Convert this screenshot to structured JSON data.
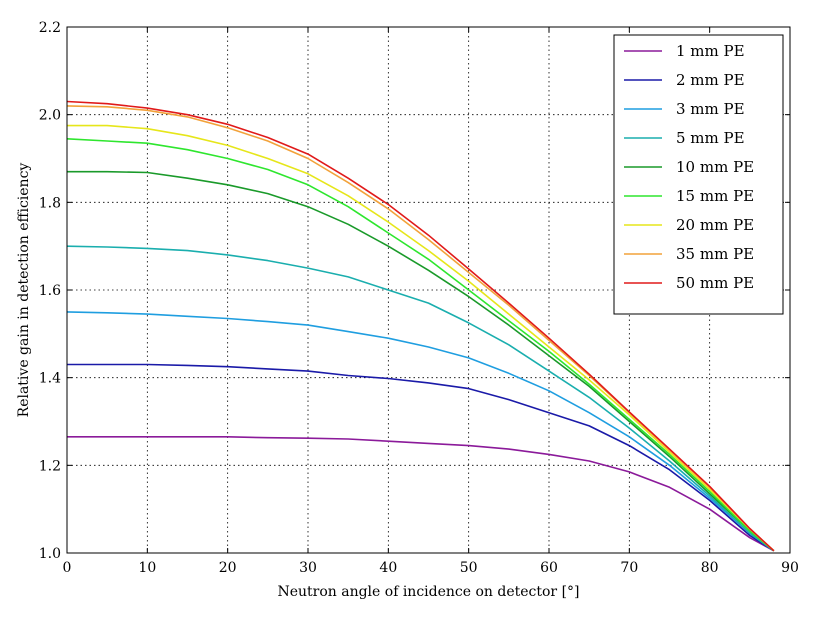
{
  "chart_data": {
    "type": "line",
    "xlabel": "Neutron angle of incidence on detector [°]",
    "ylabel": "Relative gain in detection efficiency",
    "xlim": [
      0,
      90
    ],
    "ylim": [
      1.0,
      2.2
    ],
    "xticks": [
      "0",
      "10",
      "20",
      "30",
      "40",
      "50",
      "60",
      "70",
      "80",
      "90"
    ],
    "yticks": [
      "1.0",
      "1.2",
      "1.4",
      "1.6",
      "1.8",
      "2.0",
      "2.2"
    ],
    "grid": true,
    "legend_position": "top-right",
    "x": [
      0,
      5,
      10,
      15,
      20,
      25,
      30,
      35,
      40,
      45,
      50,
      55,
      60,
      65,
      70,
      75,
      80,
      85,
      88
    ],
    "series": [
      {
        "name": "1 mm PE",
        "color": "#8b1a9a",
        "values": [
          1.265,
          1.265,
          1.265,
          1.265,
          1.265,
          1.263,
          1.262,
          1.26,
          1.255,
          1.25,
          1.245,
          1.237,
          1.225,
          1.21,
          1.185,
          1.15,
          1.1,
          1.035,
          1.005
        ]
      },
      {
        "name": "2 mm PE",
        "color": "#1a1aa8",
        "values": [
          1.43,
          1.43,
          1.43,
          1.428,
          1.425,
          1.42,
          1.415,
          1.405,
          1.398,
          1.388,
          1.375,
          1.35,
          1.32,
          1.29,
          1.245,
          1.19,
          1.12,
          1.04,
          1.005
        ]
      },
      {
        "name": "3 mm PE",
        "color": "#1f9ee0",
        "values": [
          1.55,
          1.548,
          1.545,
          1.54,
          1.535,
          1.528,
          1.52,
          1.505,
          1.49,
          1.47,
          1.445,
          1.41,
          1.37,
          1.32,
          1.265,
          1.2,
          1.125,
          1.045,
          1.005
        ]
      },
      {
        "name": "5 mm PE",
        "color": "#1aaeae",
        "values": [
          1.7,
          1.698,
          1.695,
          1.69,
          1.68,
          1.667,
          1.65,
          1.63,
          1.6,
          1.57,
          1.525,
          1.475,
          1.415,
          1.355,
          1.285,
          1.21,
          1.13,
          1.045,
          1.005
        ]
      },
      {
        "name": "10 mm PE",
        "color": "#1a9a2a",
        "values": [
          1.87,
          1.87,
          1.868,
          1.855,
          1.84,
          1.82,
          1.79,
          1.75,
          1.7,
          1.645,
          1.585,
          1.52,
          1.45,
          1.38,
          1.3,
          1.22,
          1.135,
          1.05,
          1.005
        ]
      },
      {
        "name": "15 mm PE",
        "color": "#2ee62e",
        "values": [
          1.945,
          1.94,
          1.935,
          1.92,
          1.9,
          1.875,
          1.84,
          1.79,
          1.73,
          1.67,
          1.6,
          1.53,
          1.46,
          1.385,
          1.305,
          1.225,
          1.14,
          1.05,
          1.005
        ]
      },
      {
        "name": "20 mm PE",
        "color": "#e6e61a",
        "values": [
          1.975,
          1.975,
          1.968,
          1.952,
          1.93,
          1.9,
          1.865,
          1.815,
          1.755,
          1.69,
          1.62,
          1.545,
          1.47,
          1.395,
          1.315,
          1.23,
          1.145,
          1.055,
          1.005
        ]
      },
      {
        "name": "35 mm PE",
        "color": "#f2a23a",
        "values": [
          2.02,
          2.018,
          2.01,
          1.995,
          1.97,
          1.94,
          1.9,
          1.845,
          1.785,
          1.715,
          1.64,
          1.565,
          1.485,
          1.405,
          1.32,
          1.235,
          1.15,
          1.055,
          1.005
        ]
      },
      {
        "name": "50 mm PE",
        "color": "#e01a1a",
        "values": [
          2.03,
          2.025,
          2.015,
          2.0,
          1.978,
          1.948,
          1.91,
          1.855,
          1.795,
          1.725,
          1.648,
          1.57,
          1.49,
          1.408,
          1.322,
          1.237,
          1.152,
          1.056,
          1.005
        ]
      }
    ]
  }
}
